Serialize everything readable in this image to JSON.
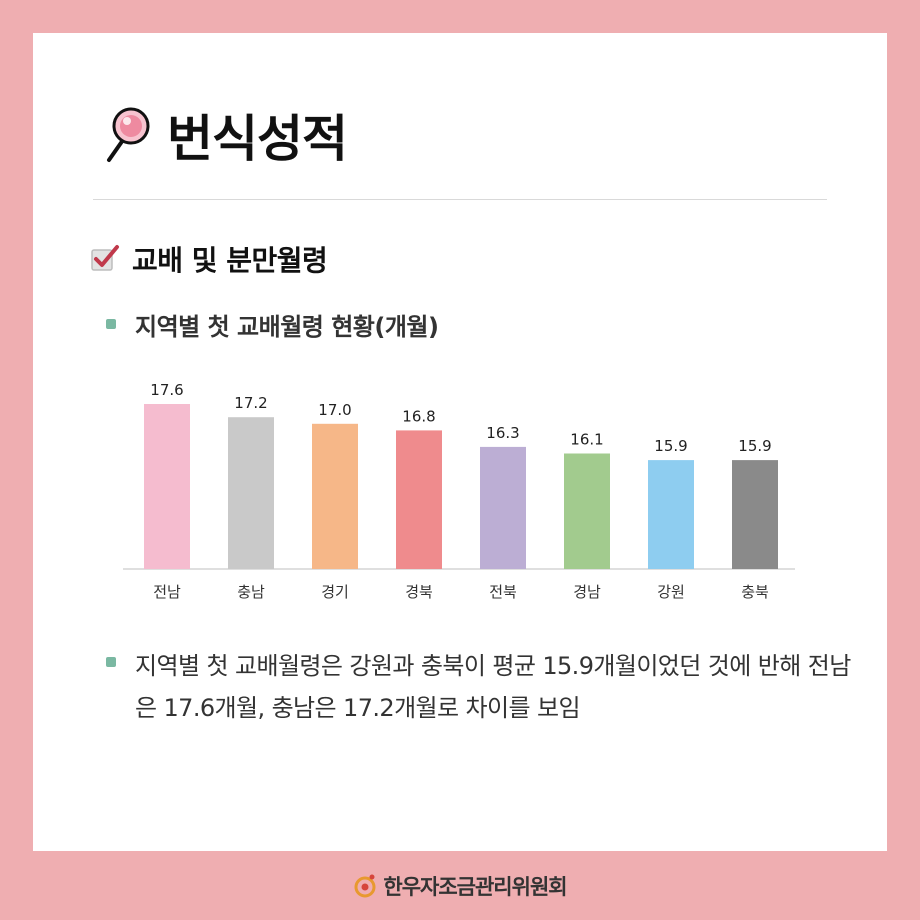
{
  "page": {
    "title": "번식성적",
    "section_title": "교배 및 분만월령",
    "subtitle": "지역별 첫 교배월령 현황(개월)",
    "note": "지역별 첫 교배월령은 강원과 충북이 평균 15.9개월이었던 것에 반해 전남은 17.6개월, 충남은 17.2개월로 차이를 보임",
    "footer": "한우자조금관리위원회",
    "icons": {
      "title": "magnifier-icon",
      "section": "checkbox-icon",
      "footer": "logo-icon"
    },
    "colors": {
      "background": "#efaeb1",
      "bullet": "#7ab8a2",
      "check": "#c0394b"
    }
  },
  "chart_data": {
    "type": "bar",
    "categories": [
      "전남",
      "충남",
      "경기",
      "경북",
      "전북",
      "경남",
      "강원",
      "충북"
    ],
    "values": [
      17.6,
      17.2,
      17.0,
      16.8,
      16.3,
      16.1,
      15.9,
      15.9
    ],
    "value_labels": [
      "17.6",
      "17.2",
      "17.0",
      "16.8",
      "16.3",
      "16.1",
      "15.9",
      "15.9"
    ],
    "colors": [
      "#f5bccf",
      "#c9c9c9",
      "#f6b788",
      "#ef8b8d",
      "#bcaed4",
      "#a2cb8e",
      "#8ecdf0",
      "#8a8a8a"
    ],
    "ylim": [
      12.6,
      17.6
    ],
    "grid": false,
    "legend": "none"
  }
}
